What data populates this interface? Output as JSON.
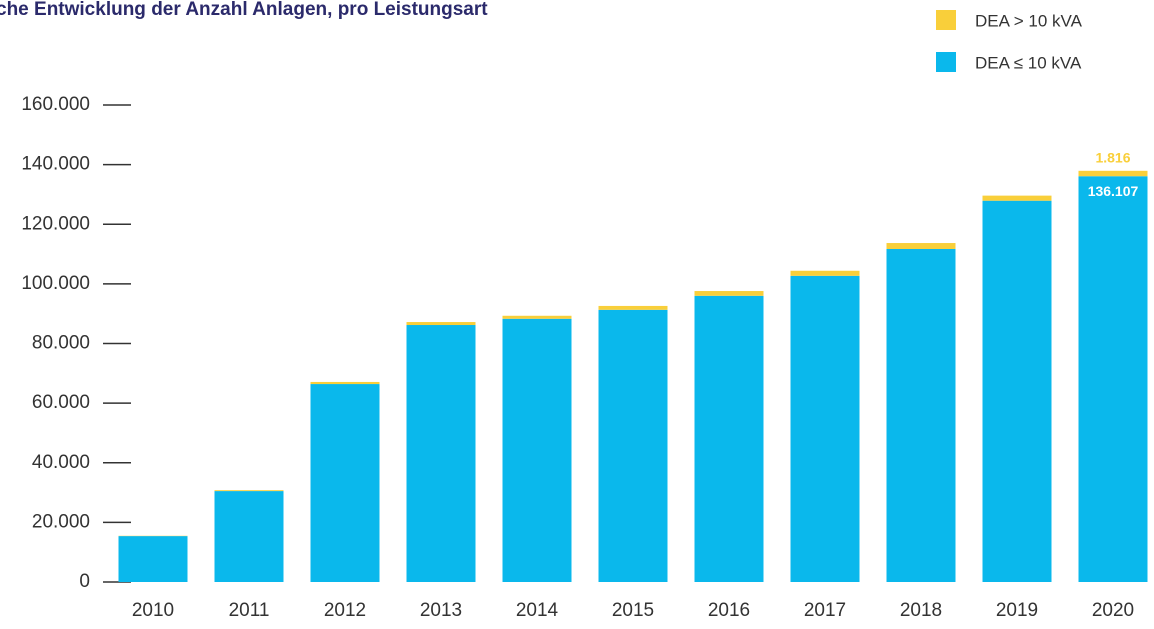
{
  "chart_data": {
    "type": "stacked_bar",
    "title": "che Entwicklung der Anzahl Anlagen, pro Leistungsart",
    "categories": [
      "2010",
      "2011",
      "2012",
      "2013",
      "2014",
      "2015",
      "2016",
      "2017",
      "2018",
      "2019",
      "2020"
    ],
    "series": [
      {
        "name": "DEA ≤ 10 kVA",
        "color": "#0ab8ec",
        "values": [
          15400,
          30500,
          66400,
          86200,
          88300,
          91300,
          96000,
          102700,
          111700,
          127900,
          136107
        ],
        "value_labels": [
          null,
          null,
          null,
          null,
          null,
          null,
          null,
          null,
          null,
          null,
          "136.107"
        ]
      },
      {
        "name": "DEA > 10 kVA",
        "color": "#f9cf3a",
        "values": [
          100,
          300,
          700,
          1000,
          1000,
          1300,
          1600,
          1700,
          2000,
          1700,
          1816
        ],
        "value_labels": [
          null,
          null,
          null,
          null,
          null,
          null,
          null,
          null,
          null,
          null,
          "1.816"
        ]
      }
    ],
    "ylim": [
      0,
      160000
    ],
    "yticks": [
      0,
      {
        "value": 20000,
        "label": "20.000"
      },
      {
        "value": 40000,
        "label": "40.000"
      },
      {
        "value": 60000,
        "label": "60.000"
      },
      {
        "value": 80000,
        "label": "80.000"
      },
      {
        "value": 100000,
        "label": "100.000"
      },
      {
        "value": 120000,
        "label": "120.000"
      },
      {
        "value": 140000,
        "label": "140.000"
      },
      {
        "value": 160000,
        "label": "160.000"
      }
    ]
  }
}
